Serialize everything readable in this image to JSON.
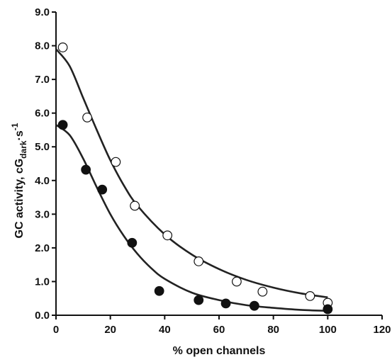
{
  "chart_data": {
    "type": "scatter",
    "title": "",
    "xlabel": "% open channels",
    "ylabel": {
      "prefix": "GC activity, cG",
      "subscript": "dark",
      "unit_base": "·s",
      "unit_exponent": "-1"
    },
    "xlim": [
      0,
      120
    ],
    "ylim": [
      0.0,
      9.0
    ],
    "x_ticks": [
      "0",
      "20",
      "40",
      "60",
      "80",
      "100",
      "120"
    ],
    "y_ticks": [
      "0.0",
      "1.0",
      "2.0",
      "3.0",
      "4.0",
      "5.0",
      "6.0",
      "7.0",
      "8.0",
      "9.0"
    ],
    "grid": false,
    "legend": "none",
    "series": [
      {
        "marker": "open-circle",
        "points": [
          [
            2.5,
            7.95
          ],
          [
            11.5,
            5.87
          ],
          [
            22,
            4.55
          ],
          [
            29,
            3.25
          ],
          [
            41,
            2.37
          ],
          [
            52.5,
            1.6
          ],
          [
            66.5,
            1.0
          ],
          [
            76,
            0.7
          ],
          [
            93.5,
            0.57
          ],
          [
            100,
            0.37
          ]
        ],
        "fit": [
          [
            0,
            7.9
          ],
          [
            5,
            7.4
          ],
          [
            10,
            6.45
          ],
          [
            15,
            5.5
          ],
          [
            20,
            4.6
          ],
          [
            25,
            3.85
          ],
          [
            30,
            3.25
          ],
          [
            40,
            2.4
          ],
          [
            50,
            1.8
          ],
          [
            60,
            1.37
          ],
          [
            70,
            1.05
          ],
          [
            80,
            0.82
          ],
          [
            90,
            0.65
          ],
          [
            100,
            0.53
          ]
        ]
      },
      {
        "marker": "filled-circle",
        "points": [
          [
            2.5,
            5.65
          ],
          [
            11,
            4.32
          ],
          [
            17,
            3.73
          ],
          [
            28,
            2.15
          ],
          [
            38,
            0.72
          ],
          [
            52.5,
            0.45
          ],
          [
            62.5,
            0.35
          ],
          [
            73,
            0.28
          ],
          [
            100,
            0.18
          ]
        ],
        "fit": [
          [
            0,
            5.65
          ],
          [
            5,
            5.35
          ],
          [
            10,
            4.65
          ],
          [
            15,
            3.8
          ],
          [
            20,
            3.0
          ],
          [
            25,
            2.35
          ],
          [
            30,
            1.82
          ],
          [
            35,
            1.4
          ],
          [
            40,
            1.08
          ],
          [
            50,
            0.67
          ],
          [
            60,
            0.45
          ],
          [
            70,
            0.3
          ],
          [
            80,
            0.22
          ],
          [
            90,
            0.16
          ],
          [
            100,
            0.13
          ]
        ]
      }
    ],
    "colors": {
      "axis": "#111111",
      "line": "#222222",
      "marker_fill_filled": "#111111",
      "marker_fill_open": "#ffffff"
    }
  }
}
